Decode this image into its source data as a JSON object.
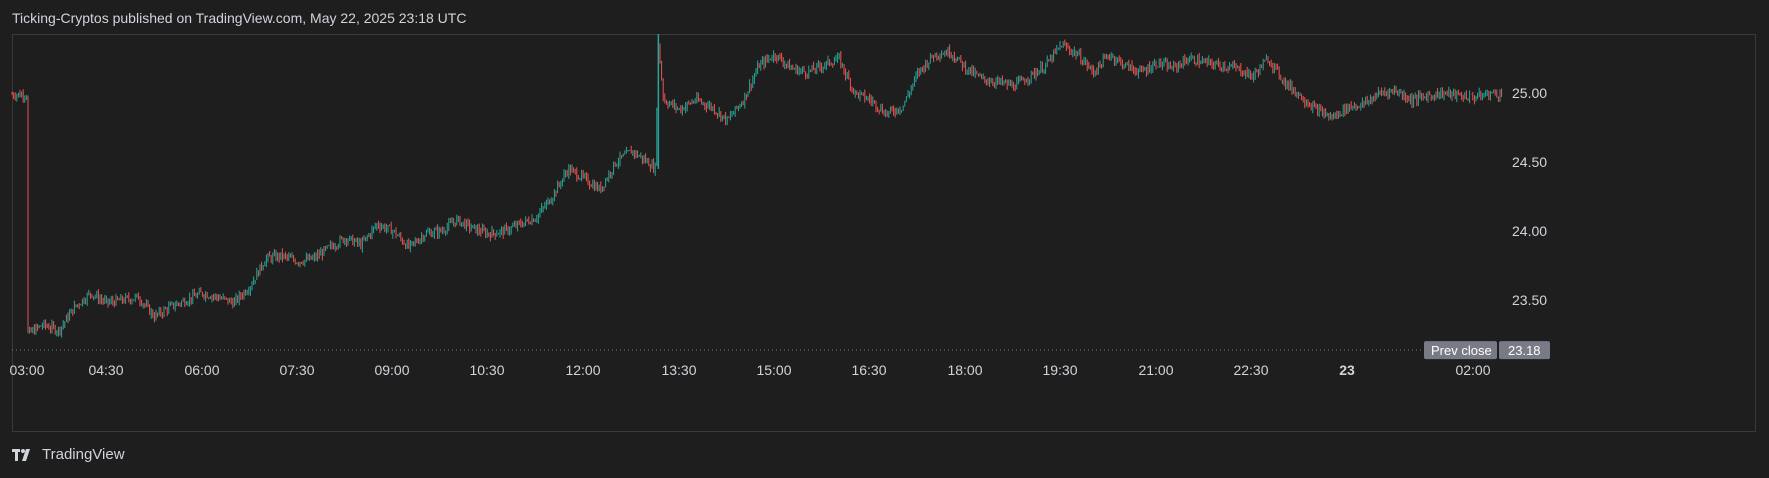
{
  "header": {
    "publisher_line": "Ticking-Cryptos published on TradingView.com, May 22, 2025 23:18 UTC"
  },
  "footer": {
    "brand": "TradingView",
    "logo_icon": "tradingview-logo-icon"
  },
  "colors": {
    "background": "#1e1e1e",
    "up": "#26a69a",
    "down": "#ef5350",
    "axis_text": "#d1d4dc",
    "label_bg": "#787b86"
  },
  "chart_data": {
    "type": "candlestick",
    "x_tick_labels": [
      "03:00",
      "04:30",
      "06:00",
      "07:30",
      "09:00",
      "10:30",
      "12:00",
      "13:30",
      "15:00",
      "16:30",
      "18:00",
      "19:30",
      "21:00",
      "22:30",
      "23",
      "02:00"
    ],
    "y_ticks": [
      23.5,
      24.0,
      24.5,
      25.0
    ],
    "y_tick_labels": [
      "23.50",
      "24.00",
      "24.50",
      "25.00"
    ],
    "ylim": [
      23.15,
      25.45
    ],
    "prev_close": {
      "label": "Prev close",
      "value": 23.18,
      "value_label": "23.18"
    },
    "grid": false,
    "series_path": {
      "times": [
        "03:00",
        "03:15",
        "03:30",
        "03:45",
        "04:00",
        "04:15",
        "04:30",
        "04:45",
        "05:00",
        "05:15",
        "05:30",
        "05:45",
        "06:00",
        "06:15",
        "06:30",
        "06:45",
        "07:00",
        "07:15",
        "07:30",
        "07:45",
        "08:00",
        "08:15",
        "08:30",
        "08:45",
        "09:00",
        "09:15",
        "09:30",
        "09:45",
        "10:00",
        "10:15",
        "10:30",
        "10:45",
        "11:00",
        "11:15",
        "11:30",
        "11:45",
        "12:00",
        "12:15",
        "12:30",
        "12:45",
        "12:52",
        "12:55",
        "13:00",
        "13:15",
        "13:30",
        "13:45",
        "14:00",
        "14:15",
        "14:30",
        "14:45",
        "15:00",
        "15:15",
        "15:30",
        "15:45",
        "16:00",
        "16:15",
        "16:30",
        "16:45",
        "17:00",
        "17:15",
        "17:30",
        "17:45",
        "18:00",
        "18:15",
        "18:30",
        "18:45",
        "19:00",
        "19:15",
        "19:30",
        "19:45",
        "20:00",
        "20:15",
        "20:30",
        "20:45",
        "21:00",
        "21:15",
        "21:30",
        "21:45",
        "22:00",
        "22:15",
        "22:30",
        "22:45",
        "23:00",
        "23:15",
        "23:30",
        "23:45",
        "00:00",
        "00:15",
        "00:30",
        "00:45",
        "01:00",
        "01:15",
        "01:30",
        "01:45",
        "02:00",
        "02:10"
      ],
      "prices": [
        23.25,
        23.32,
        23.28,
        23.45,
        23.55,
        23.48,
        23.5,
        23.52,
        23.38,
        23.45,
        23.5,
        23.55,
        23.52,
        23.48,
        23.6,
        23.8,
        23.82,
        23.78,
        23.8,
        23.88,
        23.95,
        23.9,
        24.05,
        24.0,
        23.88,
        23.98,
        24.0,
        24.08,
        24.02,
        23.98,
        24.0,
        24.05,
        24.1,
        24.25,
        24.45,
        24.38,
        24.3,
        24.5,
        24.58,
        24.5,
        24.45,
        25.35,
        24.95,
        24.88,
        24.95,
        24.9,
        24.8,
        24.95,
        25.2,
        25.28,
        25.18,
        25.15,
        25.2,
        25.25,
        25.0,
        24.95,
        24.85,
        24.9,
        25.15,
        25.28,
        25.3,
        25.18,
        25.1,
        25.08,
        25.05,
        25.12,
        25.2,
        25.35,
        25.28,
        25.15,
        25.28,
        25.2,
        25.15,
        25.22,
        25.18,
        25.25,
        25.22,
        25.2,
        25.18,
        25.12,
        25.25,
        25.08,
        24.98,
        24.88,
        24.82,
        24.9,
        24.92,
        25.0,
        25.02,
        24.95,
        24.98,
        25.0,
        24.98,
        24.97,
        25.0,
        24.99
      ]
    }
  }
}
